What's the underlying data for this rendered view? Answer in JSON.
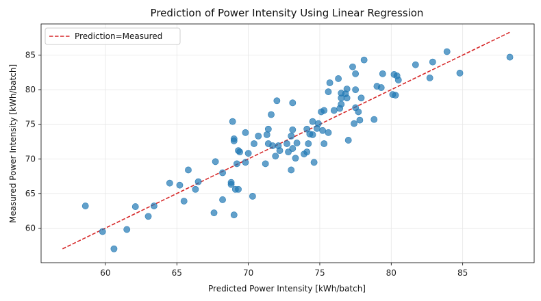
{
  "chart_data": {
    "type": "scatter",
    "title": "Prediction of Power Intensity Using Linear Regression",
    "xlabel": "Predicted Power Intensity [kWh/batch]",
    "ylabel": "Measured Power Intensity [kWh/batch]",
    "xlim": [
      55.5,
      90.0
    ],
    "ylim": [
      55.0,
      89.5
    ],
    "xticks": [
      60,
      65,
      70,
      75,
      80,
      85
    ],
    "yticks": [
      60,
      65,
      70,
      75,
      80,
      85
    ],
    "grid": true,
    "legend_position": "top-left",
    "series": [
      {
        "name": "",
        "color": "#1f77b4",
        "points": [
          [
            58.6,
            63.2
          ],
          [
            59.8,
            59.5
          ],
          [
            60.6,
            57.0
          ],
          [
            61.5,
            59.8
          ],
          [
            62.1,
            63.1
          ],
          [
            63.0,
            61.7
          ],
          [
            63.4,
            63.2
          ],
          [
            64.5,
            66.5
          ],
          [
            65.2,
            66.2
          ],
          [
            65.5,
            63.9
          ],
          [
            65.8,
            68.4
          ],
          [
            66.3,
            65.6
          ],
          [
            66.5,
            66.7
          ],
          [
            67.6,
            62.2
          ],
          [
            67.7,
            69.6
          ],
          [
            68.2,
            64.1
          ],
          [
            68.2,
            68.0
          ],
          [
            68.8,
            66.3
          ],
          [
            68.8,
            66.6
          ],
          [
            68.9,
            75.4
          ],
          [
            69.0,
            61.9
          ],
          [
            69.0,
            72.6
          ],
          [
            69.0,
            72.9
          ],
          [
            69.1,
            65.6
          ],
          [
            69.2,
            69.3
          ],
          [
            69.3,
            71.2
          ],
          [
            69.3,
            65.6
          ],
          [
            69.4,
            71.0
          ],
          [
            69.8,
            73.8
          ],
          [
            69.8,
            69.5
          ],
          [
            70.0,
            70.8
          ],
          [
            70.3,
            64.6
          ],
          [
            70.4,
            72.2
          ],
          [
            70.7,
            73.3
          ],
          [
            71.2,
            69.3
          ],
          [
            71.3,
            73.5
          ],
          [
            71.4,
            72.2
          ],
          [
            71.4,
            74.3
          ],
          [
            71.6,
            76.4
          ],
          [
            71.7,
            71.9
          ],
          [
            71.9,
            70.4
          ],
          [
            72.0,
            78.4
          ],
          [
            72.1,
            71.9
          ],
          [
            72.2,
            71.2
          ],
          [
            72.7,
            72.2
          ],
          [
            72.8,
            71.0
          ],
          [
            73.0,
            73.3
          ],
          [
            73.0,
            68.4
          ],
          [
            73.1,
            74.2
          ],
          [
            73.1,
            71.5
          ],
          [
            73.1,
            78.1
          ],
          [
            73.3,
            70.1
          ],
          [
            73.4,
            72.3
          ],
          [
            73.9,
            70.7
          ],
          [
            74.1,
            74.3
          ],
          [
            74.1,
            71.0
          ],
          [
            74.2,
            72.2
          ],
          [
            74.3,
            73.6
          ],
          [
            74.5,
            73.5
          ],
          [
            74.5,
            75.4
          ],
          [
            74.6,
            69.5
          ],
          [
            74.8,
            74.4
          ],
          [
            74.9,
            75.1
          ],
          [
            75.1,
            76.8
          ],
          [
            75.2,
            74.1
          ],
          [
            75.3,
            77.0
          ],
          [
            75.3,
            72.2
          ],
          [
            75.6,
            73.8
          ],
          [
            75.6,
            79.7
          ],
          [
            75.7,
            81.0
          ],
          [
            76.0,
            77.0
          ],
          [
            76.3,
            81.6
          ],
          [
            76.4,
            77.3
          ],
          [
            76.5,
            77.9
          ],
          [
            76.5,
            79.5
          ],
          [
            76.5,
            78.8
          ],
          [
            76.8,
            79.4
          ],
          [
            76.9,
            78.8
          ],
          [
            76.9,
            80.1
          ],
          [
            77.0,
            72.7
          ],
          [
            77.3,
            83.3
          ],
          [
            77.4,
            75.1
          ],
          [
            77.5,
            82.3
          ],
          [
            77.5,
            77.4
          ],
          [
            77.5,
            80.0
          ],
          [
            77.7,
            76.8
          ],
          [
            77.8,
            75.6
          ],
          [
            77.9,
            78.8
          ],
          [
            78.1,
            84.3
          ],
          [
            78.8,
            75.7
          ],
          [
            79.0,
            80.5
          ],
          [
            79.3,
            80.3
          ],
          [
            79.4,
            82.3
          ],
          [
            80.1,
            79.3
          ],
          [
            80.2,
            82.2
          ],
          [
            80.3,
            79.2
          ],
          [
            80.4,
            82.0
          ],
          [
            80.5,
            81.4
          ],
          [
            81.7,
            83.6
          ],
          [
            82.7,
            81.7
          ],
          [
            82.9,
            84.0
          ],
          [
            83.9,
            85.5
          ],
          [
            84.8,
            82.4
          ],
          [
            88.3,
            84.7
          ]
        ]
      }
    ],
    "reference_line": {
      "name": "Prediction=Measured",
      "color": "#d62728",
      "style": "dashed",
      "from": [
        57.0,
        57.0
      ],
      "to": [
        88.3,
        88.3
      ]
    }
  }
}
